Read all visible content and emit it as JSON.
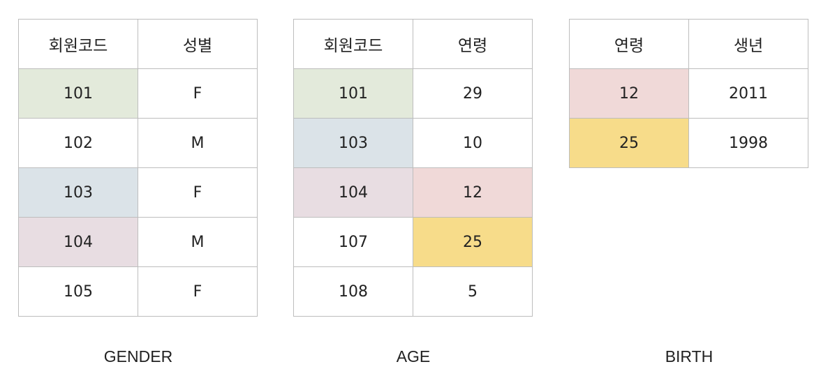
{
  "colors": {
    "green": "#e3eadb",
    "blue": "#dbe3e8",
    "purple": "#e8dde2",
    "pink": "#f0d9d8",
    "yellow": "#f7dc8a",
    "white": "#ffffff"
  },
  "tables": [
    {
      "name": "GENDER",
      "headers": [
        "회원코드",
        "성별"
      ],
      "rows": [
        {
          "cells": [
            "101",
            "F"
          ],
          "colors": [
            "green",
            "white"
          ]
        },
        {
          "cells": [
            "102",
            "M"
          ],
          "colors": [
            "white",
            "white"
          ]
        },
        {
          "cells": [
            "103",
            "F"
          ],
          "colors": [
            "blue",
            "white"
          ]
        },
        {
          "cells": [
            "104",
            "M"
          ],
          "colors": [
            "purple",
            "white"
          ]
        },
        {
          "cells": [
            "105",
            "F"
          ],
          "colors": [
            "white",
            "white"
          ]
        }
      ]
    },
    {
      "name": "AGE",
      "headers": [
        "회원코드",
        "연령"
      ],
      "rows": [
        {
          "cells": [
            "101",
            "29"
          ],
          "colors": [
            "green",
            "white"
          ]
        },
        {
          "cells": [
            "103",
            "10"
          ],
          "colors": [
            "blue",
            "white"
          ]
        },
        {
          "cells": [
            "104",
            "12"
          ],
          "colors": [
            "purple",
            "pink"
          ]
        },
        {
          "cells": [
            "107",
            "25"
          ],
          "colors": [
            "white",
            "yellow"
          ]
        },
        {
          "cells": [
            "108",
            "5"
          ],
          "colors": [
            "white",
            "white"
          ]
        }
      ]
    },
    {
      "name": "BIRTH",
      "headers": [
        "연령",
        "생년"
      ],
      "rows": [
        {
          "cells": [
            "12",
            "2011"
          ],
          "colors": [
            "pink",
            "white"
          ]
        },
        {
          "cells": [
            "25",
            "1998"
          ],
          "colors": [
            "yellow",
            "white"
          ]
        }
      ]
    }
  ]
}
